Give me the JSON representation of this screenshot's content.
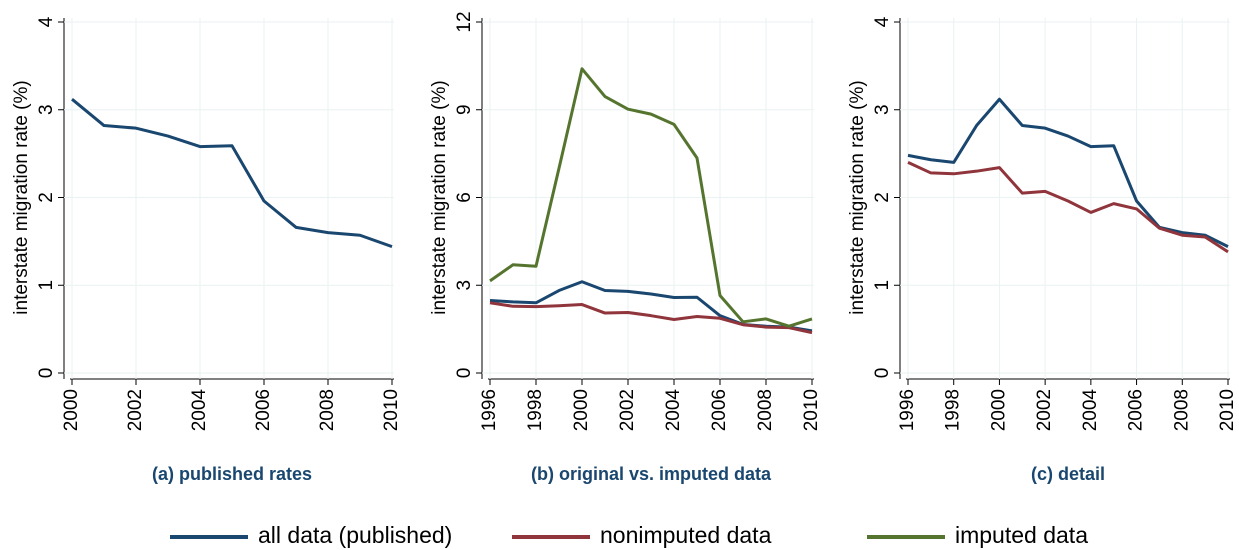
{
  "chart_data": [
    {
      "type": "line",
      "title": "(a) published rates",
      "ylabel": "interstate migration rate (%)",
      "x": [
        2000,
        2001,
        2002,
        2003,
        2004,
        2005,
        2006,
        2007,
        2008,
        2009,
        2010
      ],
      "series": [
        {
          "color": "#1a476f",
          "values": [
            3.12,
            2.82,
            2.79,
            2.7,
            2.58,
            2.59,
            1.96,
            1.66,
            1.6,
            1.57,
            1.44
          ]
        }
      ],
      "xlim": [
        2000,
        2010
      ],
      "xticks": [
        2000,
        2002,
        2004,
        2006,
        2008,
        2010
      ],
      "ylim": [
        0,
        4
      ],
      "yticks": [
        0,
        1,
        2,
        3,
        4
      ],
      "grid": true
    },
    {
      "type": "line",
      "title": "(b) original vs. imputed data",
      "ylabel": "interstate migration rate (%)",
      "x": [
        1996,
        1997,
        1998,
        1999,
        2000,
        2001,
        2002,
        2003,
        2004,
        2005,
        2006,
        2007,
        2008,
        2009,
        2010
      ],
      "series": [
        {
          "name": "all data (published)",
          "color": "#1a476f",
          "values": [
            2.48,
            2.43,
            2.4,
            2.82,
            3.12,
            2.82,
            2.79,
            2.7,
            2.58,
            2.59,
            1.96,
            1.66,
            1.6,
            1.57,
            1.44
          ]
        },
        {
          "name": "nonimputed data",
          "color": "#90353b",
          "values": [
            2.4,
            2.28,
            2.27,
            2.3,
            2.34,
            2.05,
            2.07,
            1.96,
            1.83,
            1.93,
            1.87,
            1.65,
            1.57,
            1.55,
            1.38
          ]
        },
        {
          "name": "imputed data",
          "color": "#55752f",
          "values": [
            3.15,
            3.7,
            3.65,
            7.0,
            10.4,
            9.45,
            9.02,
            8.85,
            8.5,
            7.35,
            2.65,
            1.75,
            1.85,
            1.6,
            1.85
          ]
        }
      ],
      "xlim": [
        1996,
        2010
      ],
      "xticks": [
        1996,
        1998,
        2000,
        2002,
        2004,
        2006,
        2008,
        2010
      ],
      "ylim": [
        0,
        12
      ],
      "yticks": [
        0,
        3,
        6,
        9,
        12
      ],
      "grid": true
    },
    {
      "type": "line",
      "title": "(c) detail",
      "ylabel": "interstate migration rate (%)",
      "x": [
        1996,
        1997,
        1998,
        1999,
        2000,
        2001,
        2002,
        2003,
        2004,
        2005,
        2006,
        2007,
        2008,
        2009,
        2010
      ],
      "series": [
        {
          "color": "#1a476f",
          "values": [
            2.48,
            2.43,
            2.4,
            2.82,
            3.12,
            2.82,
            2.79,
            2.7,
            2.58,
            2.59,
            1.96,
            1.66,
            1.6,
            1.57,
            1.44
          ]
        },
        {
          "color": "#90353b",
          "values": [
            2.4,
            2.28,
            2.27,
            2.3,
            2.34,
            2.05,
            2.07,
            1.96,
            1.83,
            1.93,
            1.87,
            1.65,
            1.57,
            1.55,
            1.38
          ]
        }
      ],
      "xlim": [
        1996,
        2010
      ],
      "xticks": [
        1996,
        1998,
        2000,
        2002,
        2004,
        2006,
        2008,
        2010
      ],
      "ylim": [
        0,
        4
      ],
      "yticks": [
        0,
        1,
        2,
        3,
        4
      ],
      "grid": true
    }
  ]
}
